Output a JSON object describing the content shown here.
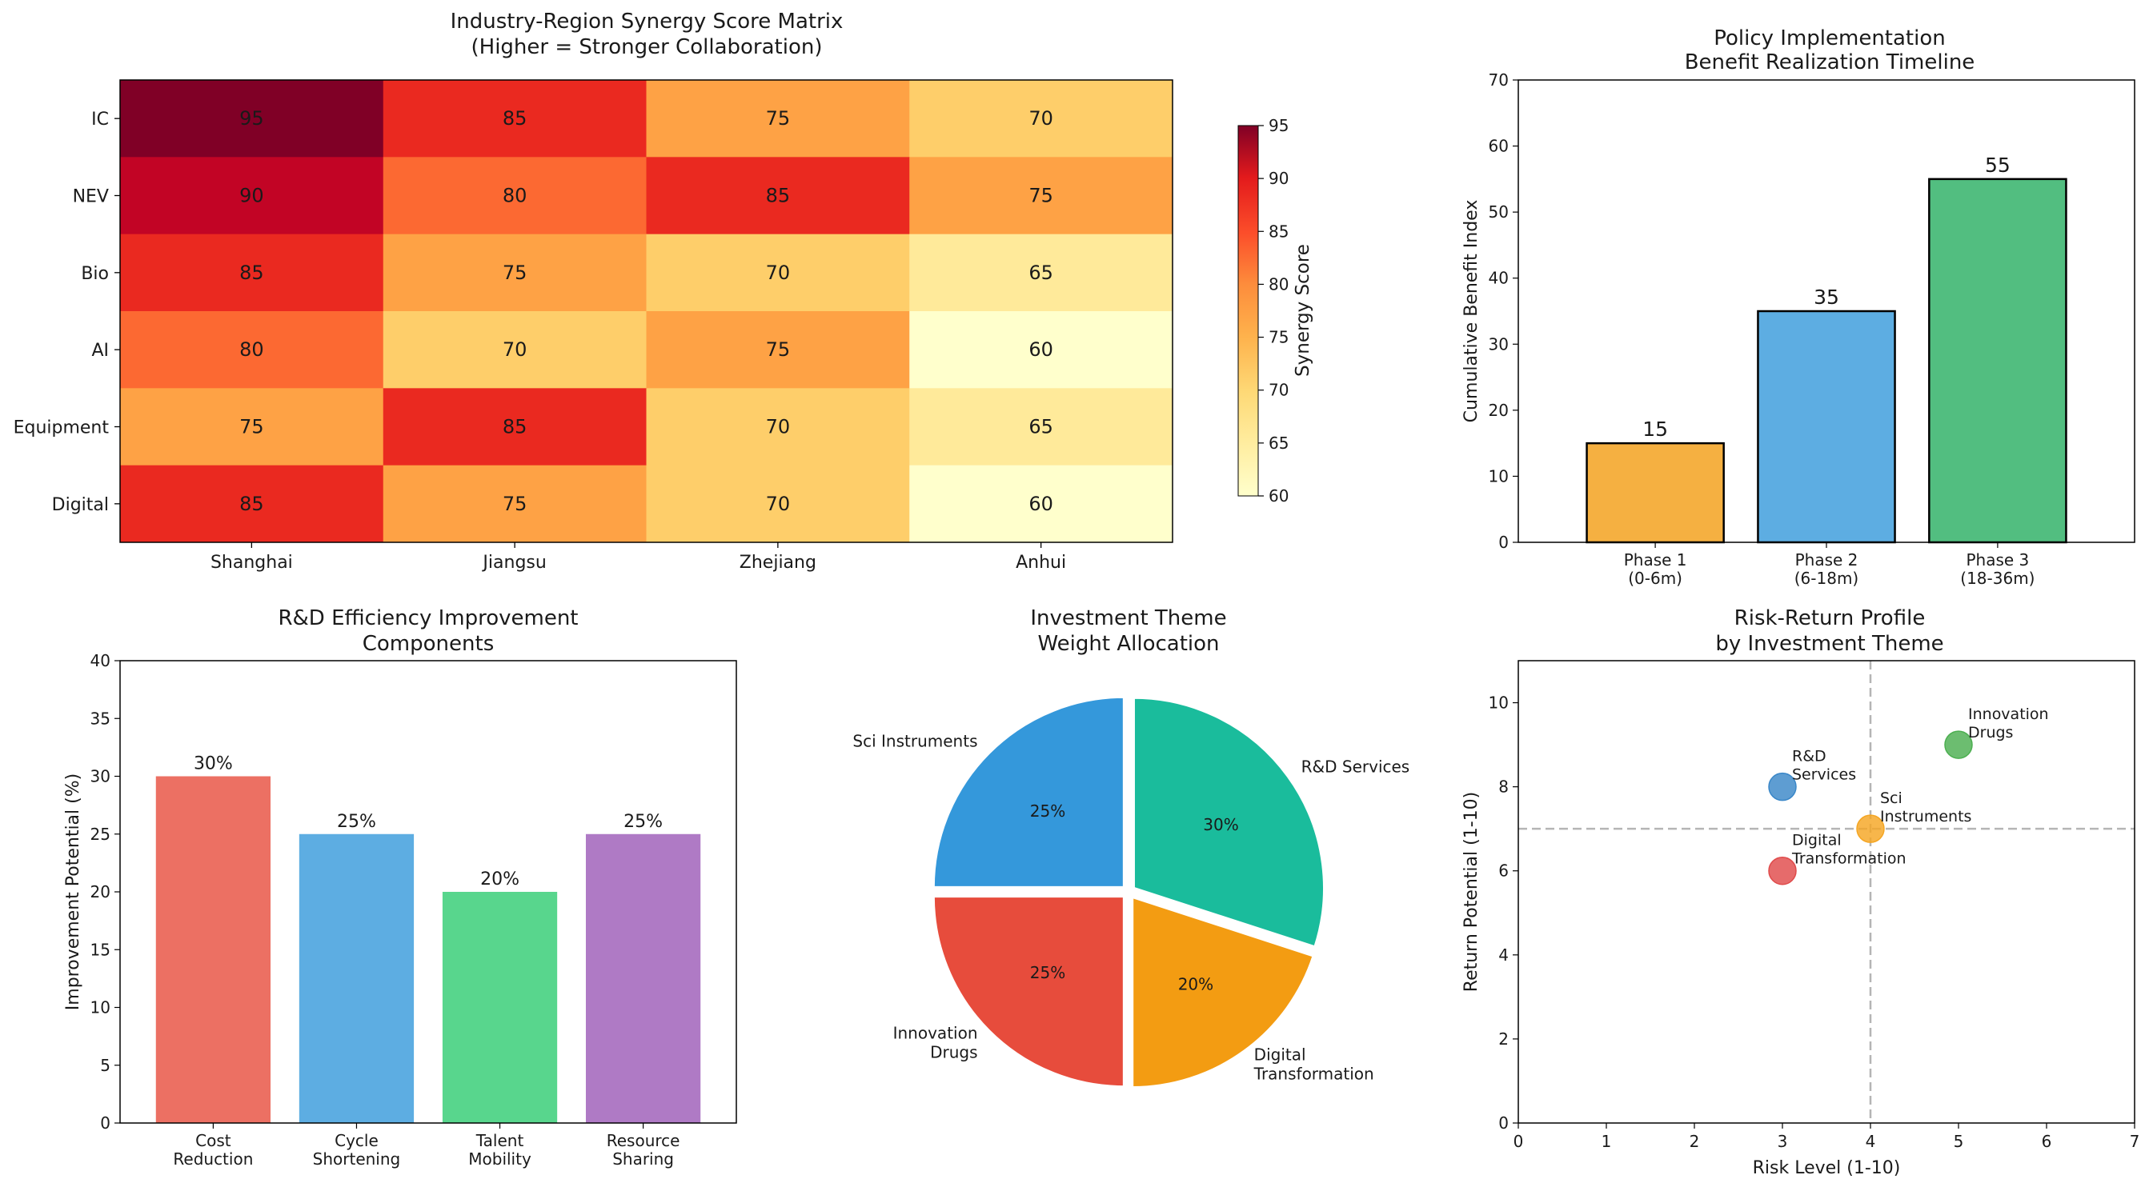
{
  "heatmap": {
    "title_line1": "Industry-Region Synergy Score Matrix",
    "title_line2": "(Higher = Stronger Collaboration)",
    "rows": [
      "IC",
      "NEV",
      "Bio",
      "AI",
      "Equipment",
      "Digital"
    ],
    "cols": [
      "Shanghai",
      "Jiangsu",
      "Zhejiang",
      "Anhui"
    ],
    "values": [
      [
        95,
        85,
        75,
        70
      ],
      [
        90,
        80,
        85,
        75
      ],
      [
        85,
        75,
        70,
        65
      ],
      [
        80,
        70,
        75,
        60
      ],
      [
        75,
        85,
        70,
        65
      ],
      [
        85,
        75,
        70,
        60
      ]
    ],
    "colorbar_label": "Synergy Score",
    "colorbar_ticks": [
      "60",
      "65",
      "70",
      "75",
      "80",
      "85",
      "90",
      "95"
    ],
    "range": [
      60,
      95
    ]
  },
  "chart_data": [
    {
      "type": "heatmap",
      "title": "Industry-Region Synergy Score Matrix (Higher = Stronger Collaboration)",
      "x_categories": [
        "Shanghai",
        "Jiangsu",
        "Zhejiang",
        "Anhui"
      ],
      "y_categories": [
        "IC",
        "NEV",
        "Bio",
        "AI",
        "Equipment",
        "Digital"
      ],
      "values": [
        [
          95,
          85,
          75,
          70
        ],
        [
          90,
          80,
          85,
          75
        ],
        [
          85,
          75,
          70,
          65
        ],
        [
          80,
          70,
          75,
          60
        ],
        [
          75,
          85,
          70,
          65
        ],
        [
          85,
          75,
          70,
          60
        ]
      ],
      "colorbar": "Synergy Score",
      "vmin": 60,
      "vmax": 95
    },
    {
      "type": "bar",
      "title": "Policy Implementation Benefit Realization Timeline",
      "categories": [
        "Phase 1 (0-6m)",
        "Phase 2 (6-18m)",
        "Phase 3 (18-36m)"
      ],
      "values": [
        15,
        35,
        55
      ],
      "ylabel": "Cumulative Benefit Index",
      "ylim": [
        0,
        70
      ]
    },
    {
      "type": "bar",
      "title": "R&D Efficiency Improvement Components",
      "categories": [
        "Cost Reduction",
        "Cycle Shortening",
        "Talent Mobility",
        "Resource Sharing"
      ],
      "values": [
        30,
        25,
        20,
        25
      ],
      "ylabel": "Improvement Potential (%)",
      "ylim": [
        0,
        40
      ]
    },
    {
      "type": "pie",
      "title": "Investment Theme Weight Allocation",
      "labels": [
        "R&D Services",
        "Digital Transformation",
        "Innovation Drugs",
        "Sci Instruments"
      ],
      "values": [
        30,
        20,
        25,
        25
      ]
    },
    {
      "type": "scatter",
      "title": "Risk-Return Profile by Investment Theme",
      "points": [
        {
          "label": "R&D Services",
          "x": 3,
          "y": 8
        },
        {
          "label": "Sci Instruments",
          "x": 4,
          "y": 7
        },
        {
          "label": "Innovation Drugs",
          "x": 5,
          "y": 9
        },
        {
          "label": "Digital Transformation",
          "x": 3,
          "y": 6
        }
      ],
      "xlabel": "Risk Level (1-10)",
      "ylabel": "Return Potential (1-10)",
      "xlim": [
        0,
        7
      ],
      "ylim": [
        0,
        11
      ],
      "reference_lines": {
        "x": 4,
        "y": 7
      }
    }
  ],
  "timeline": {
    "title_line1": "Policy Implementation",
    "title_line2": "Benefit Realization Timeline",
    "ylabel": "Cumulative Benefit Index",
    "ymax": 70,
    "yticks": [
      "0",
      "10",
      "20",
      "30",
      "40",
      "50",
      "60",
      "70"
    ],
    "bars": [
      {
        "line1": "Phase 1",
        "line2": "(0-6m)",
        "value": 15,
        "value_label": "15",
        "color": "#F5B041"
      },
      {
        "line1": "Phase 2",
        "line2": "(6-18m)",
        "value": 35,
        "value_label": "35",
        "color": "#5DADE2"
      },
      {
        "line1": "Phase 3",
        "line2": "(18-36m)",
        "value": 55,
        "value_label": "55",
        "color": "#52BE80"
      }
    ]
  },
  "rnd": {
    "title_line1": "R&D Efficiency Improvement",
    "title_line2": "Components",
    "ylabel": "Improvement Potential (%)",
    "ymax": 40,
    "yticks": [
      "0",
      "5",
      "10",
      "15",
      "20",
      "25",
      "30",
      "35",
      "40"
    ],
    "bars": [
      {
        "line1": "Cost",
        "line2": "Reduction",
        "value": 30,
        "value_label": "30%",
        "color": "#EC7063"
      },
      {
        "line1": "Cycle",
        "line2": "Shortening",
        "value": 25,
        "value_label": "25%",
        "color": "#5DADE2"
      },
      {
        "line1": "Talent",
        "line2": "Mobility",
        "value": 20,
        "value_label": "20%",
        "color": "#58D68D"
      },
      {
        "line1": "Resource",
        "line2": "Sharing",
        "value": 25,
        "value_label": "25%",
        "color": "#AF7AC5"
      }
    ]
  },
  "pie": {
    "title_line1": "Investment Theme",
    "title_line2": "Weight Allocation",
    "slices": [
      {
        "label_lines": [
          "R&D Services"
        ],
        "value": 30,
        "pct": "30%",
        "color": "#1ABC9C"
      },
      {
        "label_lines": [
          "Digital",
          "Transformation"
        ],
        "value": 20,
        "pct": "20%",
        "color": "#F39C12"
      },
      {
        "label_lines": [
          "Innovation",
          "Drugs"
        ],
        "value": 25,
        "pct": "25%",
        "color": "#E74C3C"
      },
      {
        "label_lines": [
          "Sci Instruments"
        ],
        "value": 25,
        "pct": "25%",
        "color": "#3498DB"
      }
    ]
  },
  "scatter": {
    "title_line1": "Risk-Return Profile",
    "title_line2": "by Investment Theme",
    "xlabel": "Risk Level (1-10)",
    "ylabel": "Return Potential (1-10)",
    "xmax": 7,
    "ymax": 11,
    "xticks": [
      "0",
      "1",
      "2",
      "3",
      "4",
      "5",
      "6",
      "7"
    ],
    "yticks": [
      "0",
      "2",
      "4",
      "6",
      "8",
      "10"
    ],
    "ref_x": 4,
    "ref_y": 7,
    "points": [
      {
        "label_lines": [
          "R&D",
          "Services"
        ],
        "x": 3,
        "y": 8,
        "color": "#3A87C8"
      },
      {
        "label_lines": [
          "Sci",
          "Instruments"
        ],
        "x": 4,
        "y": 7,
        "color": "#F5A623"
      },
      {
        "label_lines": [
          "Innovation",
          "Drugs"
        ],
        "x": 5,
        "y": 9,
        "color": "#4CAF50"
      },
      {
        "label_lines": [
          "Digital",
          "Transformation"
        ],
        "x": 3,
        "y": 6,
        "color": "#E04B4B"
      }
    ]
  }
}
